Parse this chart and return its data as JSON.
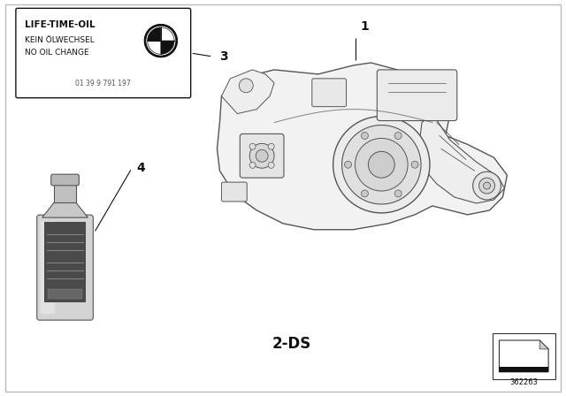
{
  "bg_color": "#ffffff",
  "border_color": "#cccccc",
  "label_1": "1",
  "label_3": "3",
  "label_4": "4",
  "label_2ds": "2-DS",
  "part_number": "362263",
  "sticker_line1": "LIFE-TIME-OIL",
  "sticker_line2": "KEIN ÖLWECHSEL",
  "sticker_line3": "NO OIL CHANGE",
  "sticker_serial": "01 39 9 791 197",
  "line_color": "#333333",
  "gray_light": "#d8d8d8",
  "gray_mid": "#aaaaaa",
  "gray_dark": "#666666"
}
